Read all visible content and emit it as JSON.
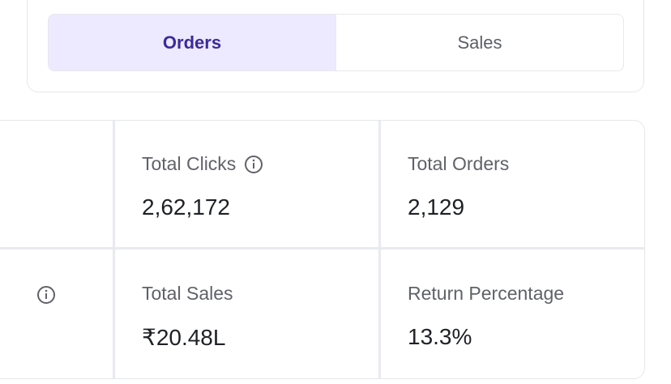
{
  "toggle": {
    "options": [
      {
        "label": "Orders",
        "active": true
      },
      {
        "label": "Sales",
        "active": false
      }
    ]
  },
  "metrics": {
    "total_clicks": {
      "label": "Total Clicks",
      "value": "2,62,172",
      "icon": "info-icon"
    },
    "total_orders": {
      "label": "Total Orders",
      "value": "2,129"
    },
    "total_sales": {
      "label": "Total Sales",
      "value": "₹20.48L"
    },
    "return_percentage": {
      "label": "Return Percentage",
      "value": "13.3%"
    }
  },
  "colors": {
    "active_bg": "#ede9fe",
    "active_text": "#3b2a9b",
    "border": "#e6e7ea"
  }
}
